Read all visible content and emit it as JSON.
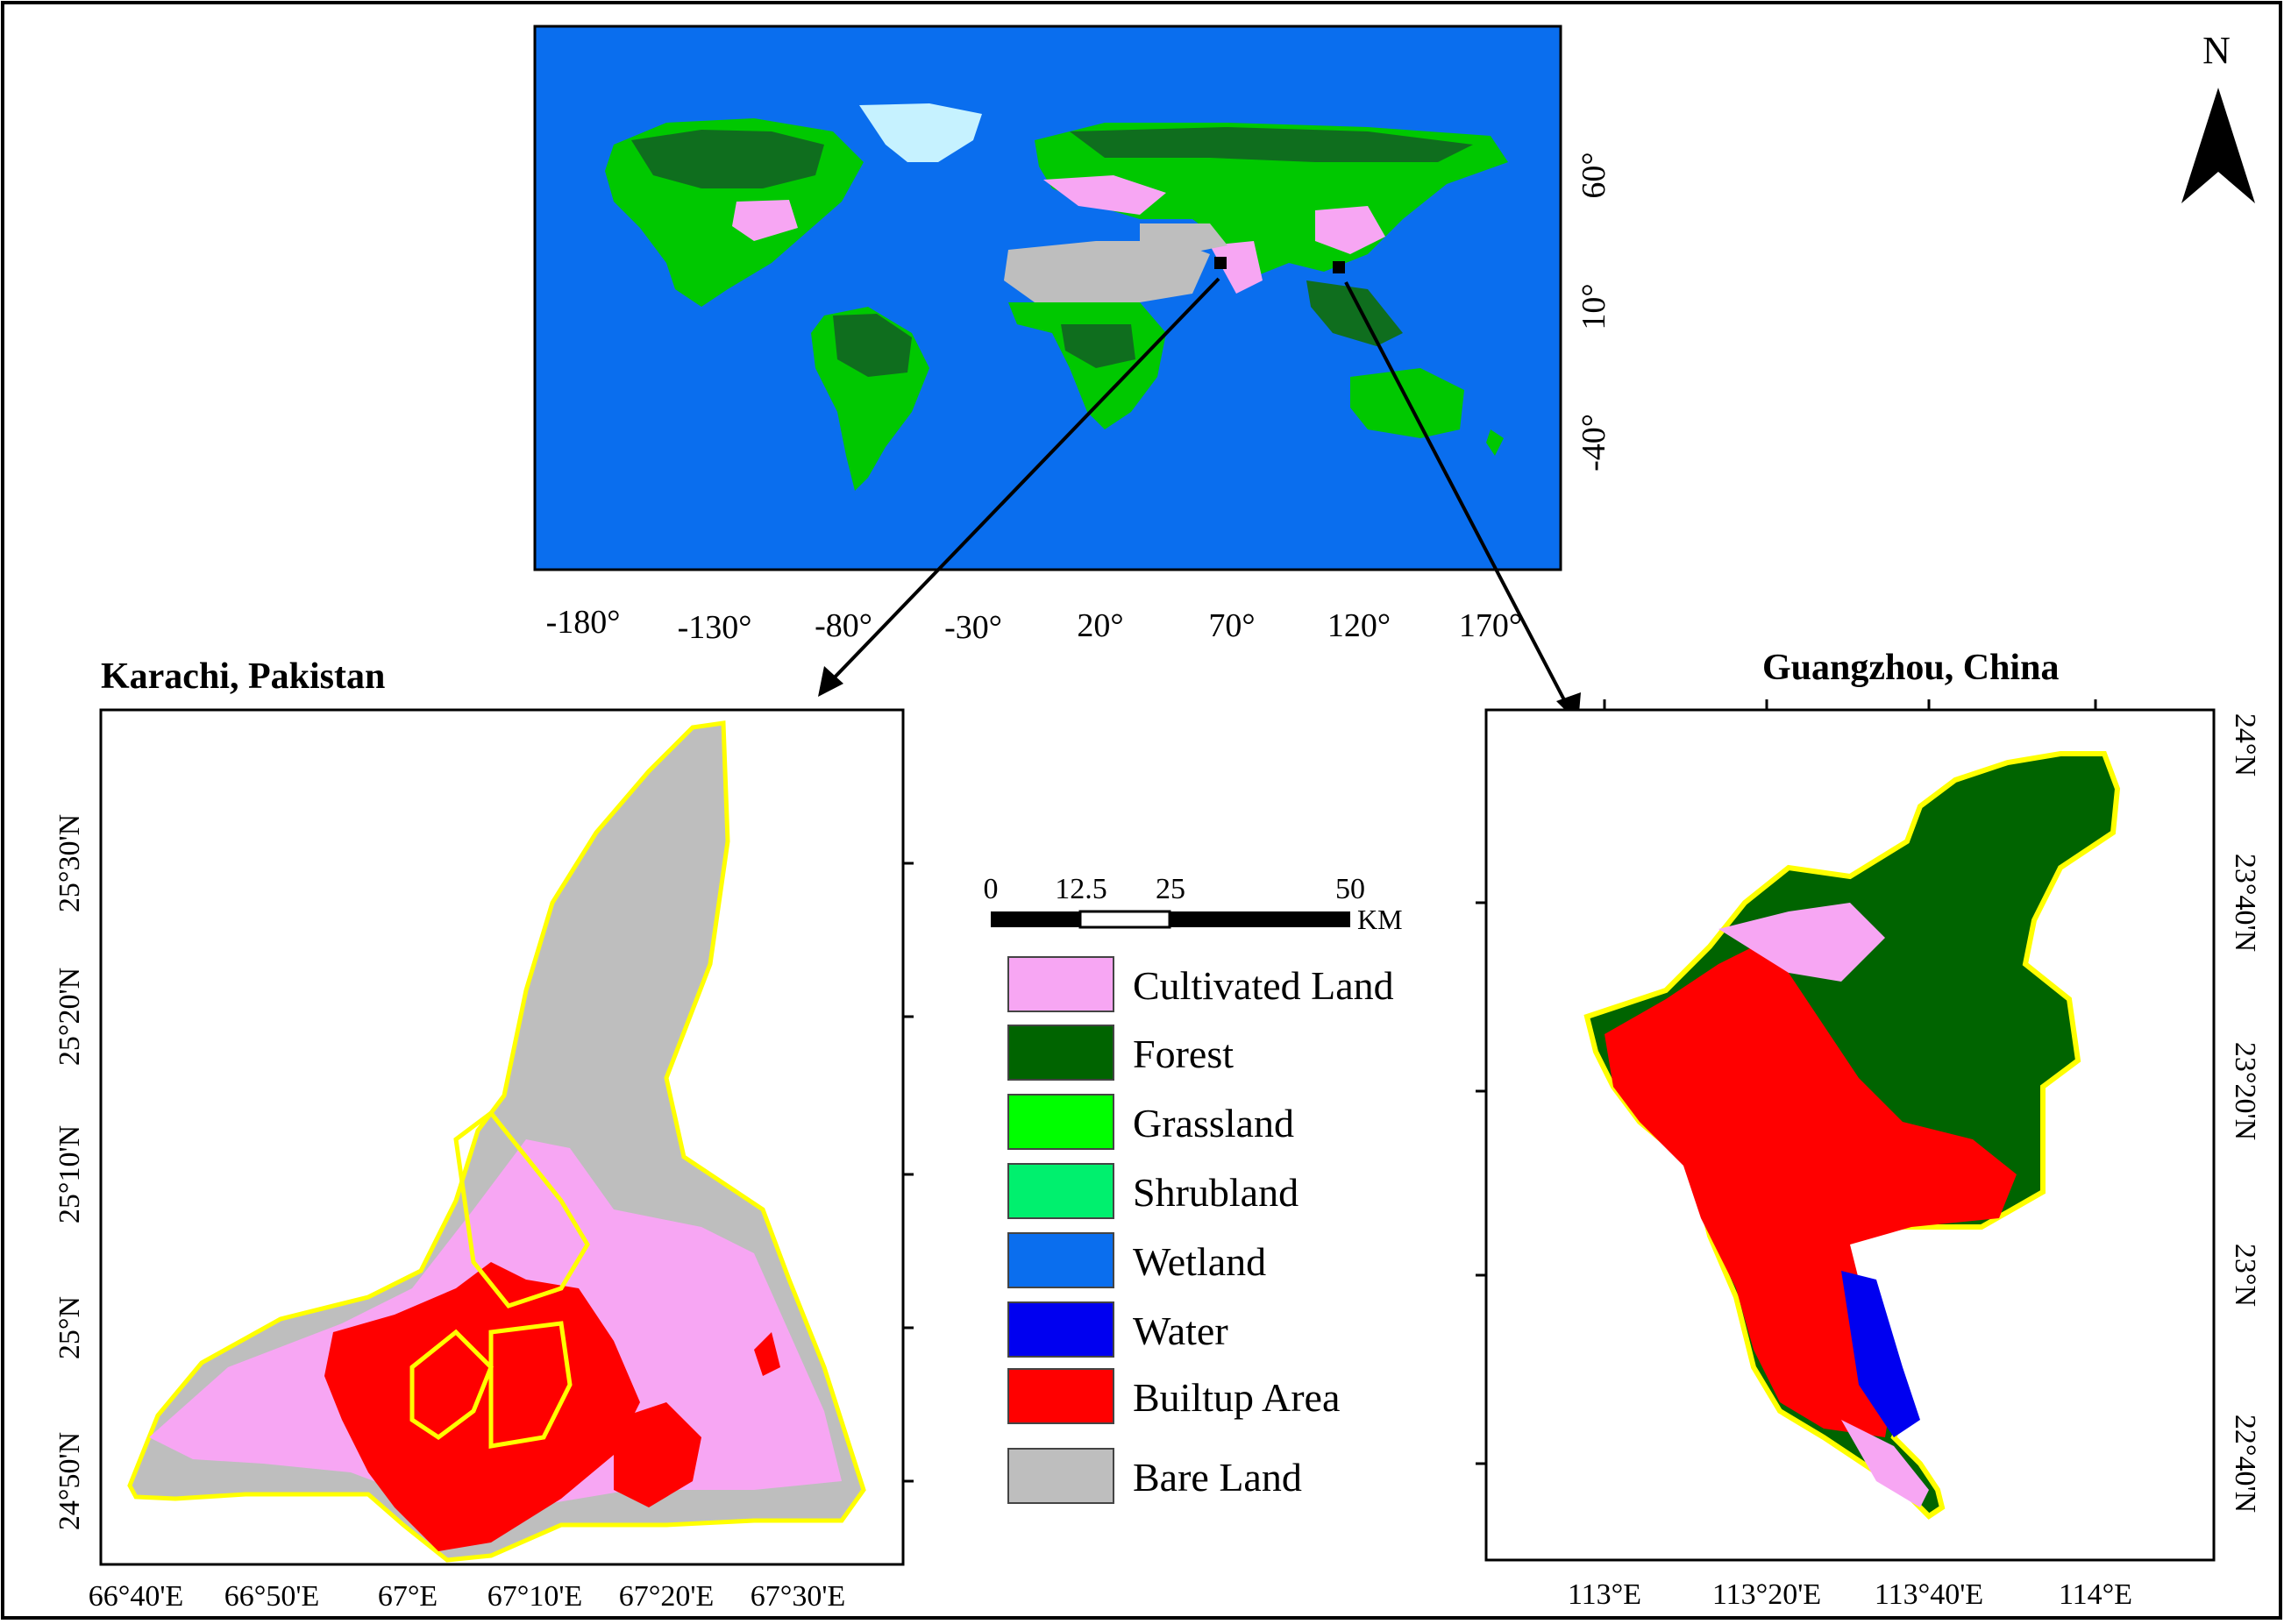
{
  "north_label": "N",
  "world_map": {
    "lon_ticks": [
      "-180°",
      "-130°",
      "-80°",
      "-30°",
      "20°",
      "70°",
      "120°",
      "170°"
    ],
    "lat_ticks": [
      "60°",
      "10°",
      "-40°"
    ]
  },
  "karachi": {
    "title": "Karachi, Pakistan",
    "lon_ticks": [
      "66°40'E",
      "66°50'E",
      "67°E",
      "67°10'E",
      "67°20'E",
      "67°30'E"
    ],
    "lat_ticks": [
      "25°30'N",
      "25°20'N",
      "25°10'N",
      "25°N",
      "24°50'N"
    ]
  },
  "guangzhou": {
    "title": "Guangzhou, China",
    "lon_ticks": [
      "113°E",
      "113°20'E",
      "113°40'E",
      "114°E"
    ],
    "lat_ticks": [
      "24°N",
      "23°40'N",
      "23°20'N",
      "23°N",
      "22°40'N"
    ]
  },
  "scale_bar": {
    "labels": [
      "0",
      "12.5",
      "25",
      "50"
    ],
    "unit": "KM"
  },
  "legend": [
    {
      "label": "Cultivated Land",
      "color": "#f7a6f3"
    },
    {
      "label": "Forest",
      "color": "#006400"
    },
    {
      "label": "Grassland",
      "color": "#00ff00"
    },
    {
      "label": "Shrubland",
      "color": "#00f06e"
    },
    {
      "label": "Wetland",
      "color": "#0a6eee"
    },
    {
      "label": "Water",
      "color": "#0000f0"
    },
    {
      "label": "Builtup Area",
      "color": "#ff0000"
    },
    {
      "label": "Bare Land",
      "color": "#bebebe"
    }
  ]
}
